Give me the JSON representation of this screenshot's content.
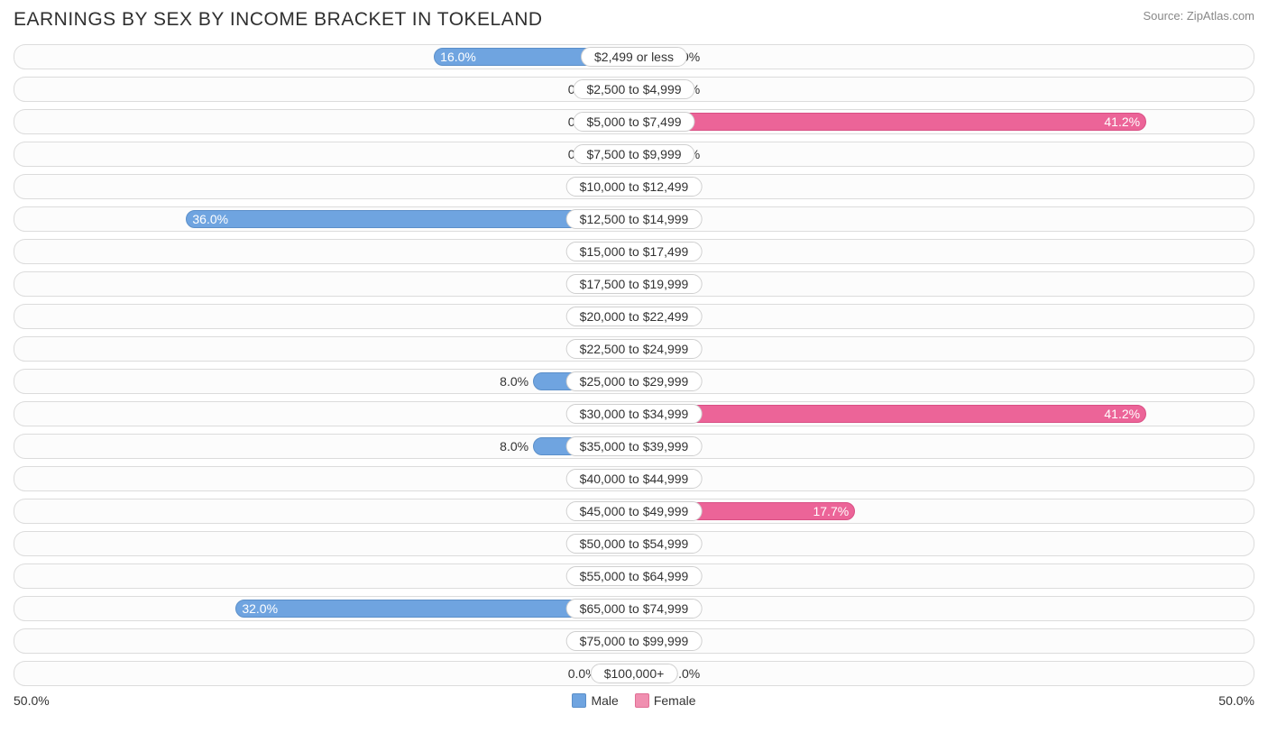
{
  "title": "EARNINGS BY SEX BY INCOME BRACKET IN TOKELAND",
  "source": "Source: ZipAtlas.com",
  "axis_max": 50.0,
  "axis_label_left": "50.0%",
  "axis_label_right": "50.0%",
  "min_bar_pct": 5.0,
  "label_inside_threshold": 10.0,
  "colors": {
    "male_fill": "#6fa4e0",
    "male_border": "#5b8fc9",
    "female_fill": "#f08fb0",
    "female_border": "#e06f95",
    "female_strong_fill": "#ec6498",
    "female_strong_border": "#d94f84",
    "row_border": "#dcdcdc",
    "row_bg": "#fcfcfc",
    "text": "#333333"
  },
  "legend": {
    "male": "Male",
    "female": "Female"
  },
  "rows": [
    {
      "label": "$2,499 or less",
      "male": 16.0,
      "female": 0.0
    },
    {
      "label": "$2,500 to $4,999",
      "male": 0.0,
      "female": 0.0
    },
    {
      "label": "$5,000 to $7,499",
      "male": 0.0,
      "female": 41.2
    },
    {
      "label": "$7,500 to $9,999",
      "male": 0.0,
      "female": 0.0
    },
    {
      "label": "$10,000 to $12,499",
      "male": 0.0,
      "female": 0.0
    },
    {
      "label": "$12,500 to $14,999",
      "male": 36.0,
      "female": 0.0
    },
    {
      "label": "$15,000 to $17,499",
      "male": 0.0,
      "female": 0.0
    },
    {
      "label": "$17,500 to $19,999",
      "male": 0.0,
      "female": 0.0
    },
    {
      "label": "$20,000 to $22,499",
      "male": 0.0,
      "female": 0.0
    },
    {
      "label": "$22,500 to $24,999",
      "male": 0.0,
      "female": 0.0
    },
    {
      "label": "$25,000 to $29,999",
      "male": 8.0,
      "female": 0.0
    },
    {
      "label": "$30,000 to $34,999",
      "male": 0.0,
      "female": 41.2
    },
    {
      "label": "$35,000 to $39,999",
      "male": 8.0,
      "female": 0.0
    },
    {
      "label": "$40,000 to $44,999",
      "male": 0.0,
      "female": 0.0
    },
    {
      "label": "$45,000 to $49,999",
      "male": 0.0,
      "female": 17.7
    },
    {
      "label": "$50,000 to $54,999",
      "male": 0.0,
      "female": 0.0
    },
    {
      "label": "$55,000 to $64,999",
      "male": 0.0,
      "female": 0.0
    },
    {
      "label": "$65,000 to $74,999",
      "male": 32.0,
      "female": 0.0
    },
    {
      "label": "$75,000 to $99,999",
      "male": 0.0,
      "female": 0.0
    },
    {
      "label": "$100,000+",
      "male": 0.0,
      "female": 0.0
    }
  ]
}
